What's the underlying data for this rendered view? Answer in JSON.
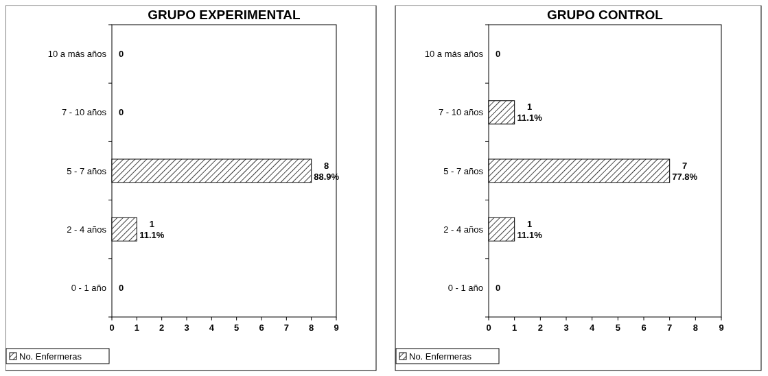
{
  "chart_data": [
    {
      "type": "bar",
      "orientation": "horizontal",
      "title": "GRUPO EXPERIMENTAL",
      "categories": [
        "10 a más años",
        "7 - 10 años",
        "5 - 7 años",
        "2 - 4 años",
        "0 - 1 año"
      ],
      "series": [
        {
          "name": "No. Enfermeras",
          "color": "#000000",
          "values": [
            0,
            0,
            8,
            1,
            0
          ],
          "value_labels": [
            "0",
            "0",
            "8\n88.9%",
            "1\n11.1%",
            "0"
          ]
        }
      ],
      "xlim": [
        0,
        9
      ],
      "xticks": [
        0,
        1,
        2,
        3,
        4,
        5,
        6,
        7,
        8,
        9
      ],
      "grid": false,
      "legend": "bottom left"
    },
    {
      "type": "bar",
      "orientation": "horizontal",
      "title": "GRUPO CONTROL",
      "categories": [
        "10 a más años",
        "7 - 10 años",
        "5 - 7 años",
        "2 - 4 años",
        "0 - 1 año"
      ],
      "series": [
        {
          "name": "No. Enfermeras",
          "color": "#000000",
          "values": [
            0,
            1,
            7,
            1,
            0
          ],
          "value_labels": [
            "0",
            "1\n11.1%",
            "7\n77.8%",
            "1\n11.1%",
            "0"
          ]
        }
      ],
      "xlim": [
        0,
        9
      ],
      "xticks": [
        0,
        1,
        2,
        3,
        4,
        5,
        6,
        7,
        8,
        9
      ],
      "grid": false,
      "legend": "bottom left"
    }
  ]
}
